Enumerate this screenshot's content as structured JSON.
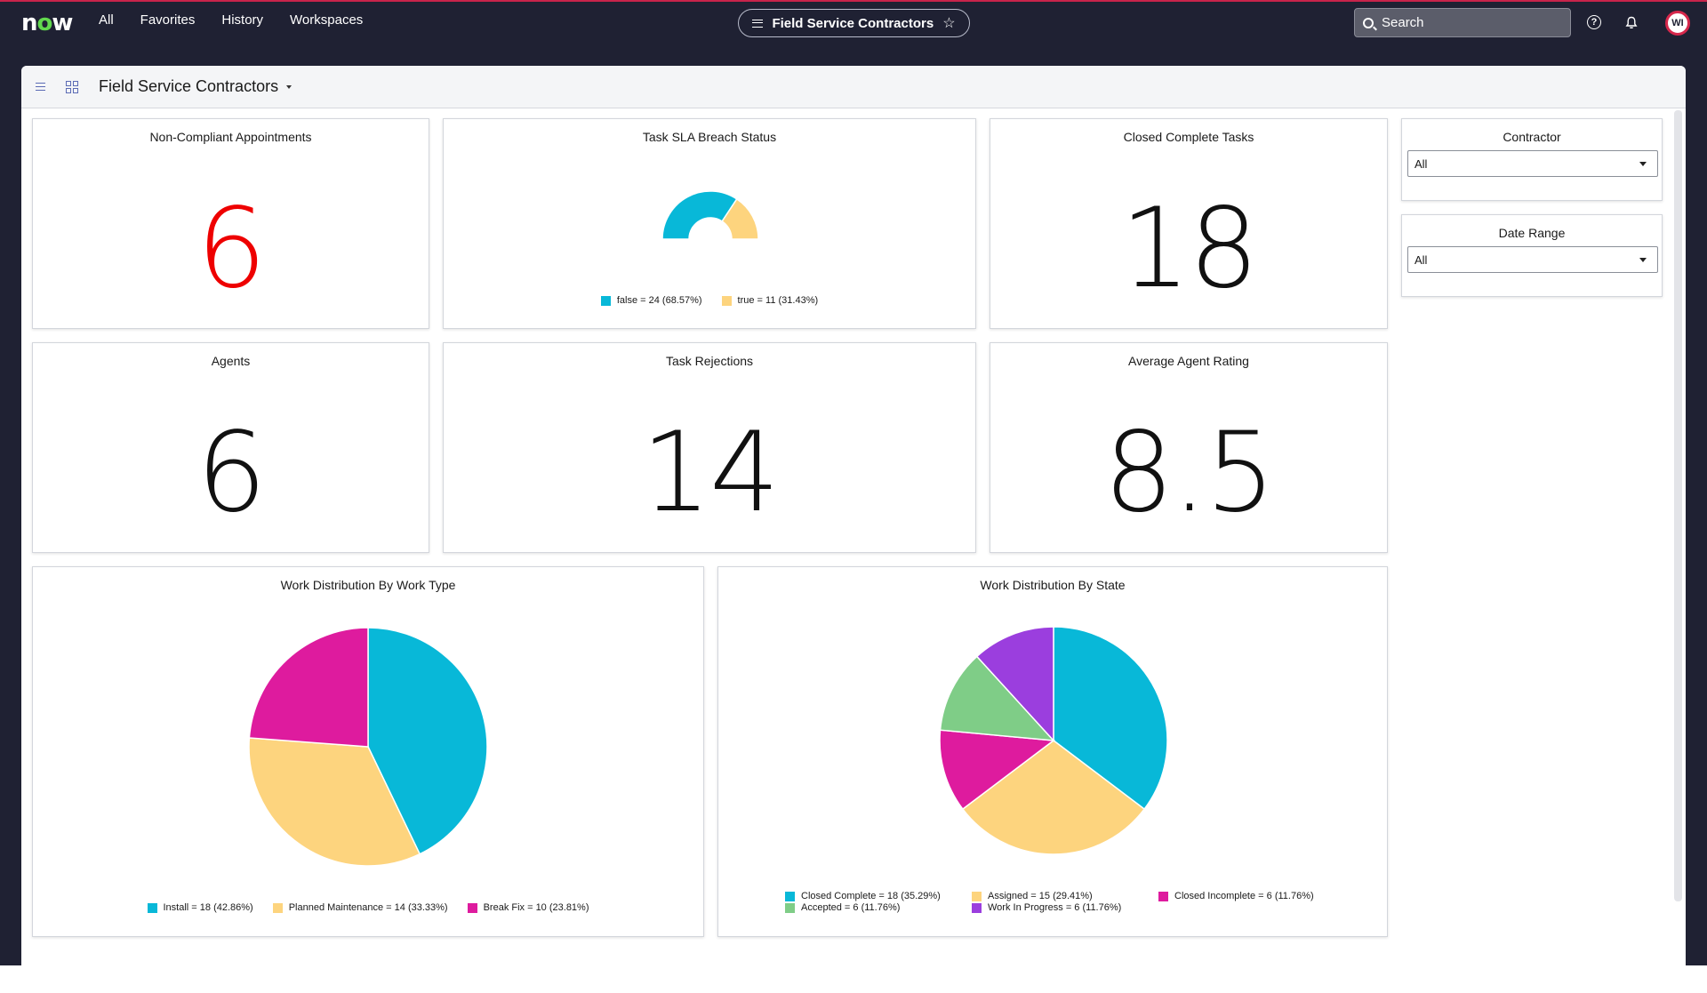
{
  "topnav": {
    "logo": "now",
    "links": [
      "All",
      "Favorites",
      "History",
      "Workspaces"
    ],
    "center_title": "Field Service Contractors",
    "search_placeholder": "Search",
    "avatar_initials": "WI"
  },
  "dashboard": {
    "title": "Field Service Contractors"
  },
  "cards": {
    "non_compliant": {
      "title": "Non-Compliant Appointments",
      "value": "6",
      "color": "#ee0000"
    },
    "sla": {
      "title": "Task SLA Breach Status",
      "legend": [
        {
          "label": "false = 24 (68.57%)",
          "color": "#08b8d8"
        },
        {
          "label": "true = 11 (31.43%)",
          "color": "#fdd47e"
        }
      ]
    },
    "closed_complete": {
      "title": "Closed Complete Tasks",
      "value": "18"
    },
    "agents": {
      "title": "Agents",
      "value": "6"
    },
    "rejections": {
      "title": "Task Rejections",
      "value": "14"
    },
    "avg_rating": {
      "title": "Average Agent Rating",
      "value": "8.5"
    },
    "work_type": {
      "title": "Work Distribution By Work Type",
      "legend": [
        {
          "label": "Install = 18 (42.86%)",
          "color": "#08b8d8"
        },
        {
          "label": "Planned Maintenance = 14 (33.33%)",
          "color": "#fdd47e"
        },
        {
          "label": "Break Fix = 10 (23.81%)",
          "color": "#de1b9e"
        }
      ]
    },
    "work_state": {
      "title": "Work Distribution By State",
      "legend": [
        {
          "label": "Closed Complete = 18 (35.29%)",
          "color": "#08b8d8"
        },
        {
          "label": "Assigned = 15 (29.41%)",
          "color": "#fdd47e"
        },
        {
          "label": "Closed Incomplete = 6 (11.76%)",
          "color": "#de1b9e"
        },
        {
          "label": "Accepted = 6 (11.76%)",
          "color": "#7fcd87"
        },
        {
          "label": "Work In Progress = 6 (11.76%)",
          "color": "#9b3ede"
        }
      ]
    }
  },
  "filters": {
    "contractor": {
      "title": "Contractor",
      "value": "All"
    },
    "date_range": {
      "title": "Date Range",
      "value": "All"
    }
  },
  "chart_data": [
    {
      "type": "pie",
      "variant": "semi-donut",
      "title": "Task SLA Breach Status",
      "categories": [
        "false",
        "true"
      ],
      "values": [
        24,
        11
      ],
      "colors": [
        "#08b8d8",
        "#fdd47e"
      ]
    },
    {
      "type": "pie",
      "title": "Work Distribution By Work Type",
      "categories": [
        "Install",
        "Planned Maintenance",
        "Break Fix"
      ],
      "values": [
        18,
        14,
        10
      ],
      "colors": [
        "#08b8d8",
        "#fdd47e",
        "#de1b9e"
      ]
    },
    {
      "type": "pie",
      "title": "Work Distribution By State",
      "categories": [
        "Closed Complete",
        "Assigned",
        "Closed Incomplete",
        "Accepted",
        "Work In Progress"
      ],
      "values": [
        18,
        15,
        6,
        6,
        6
      ],
      "colors": [
        "#08b8d8",
        "#fdd47e",
        "#de1b9e",
        "#7fcd87",
        "#9b3ede"
      ]
    }
  ]
}
